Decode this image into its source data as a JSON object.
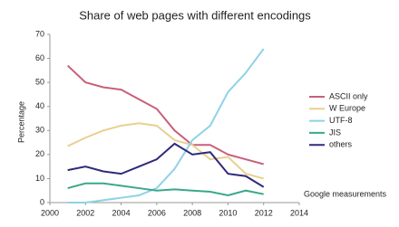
{
  "chart_data": {
    "type": "line",
    "title": "Share of web pages with different encodings",
    "y_label": "Percentage",
    "annotation": "Google measurements",
    "x": [
      2001,
      2002,
      2003,
      2004,
      2005,
      2006,
      2007,
      2008,
      2009,
      2010,
      2011,
      2012
    ],
    "xlim": [
      2000,
      2014
    ],
    "xticks": [
      2000,
      2002,
      2004,
      2006,
      2008,
      2010,
      2012,
      2014
    ],
    "ylim": [
      0,
      70
    ],
    "yticks": [
      0,
      10,
      20,
      30,
      40,
      50,
      60,
      70
    ],
    "grid": false,
    "legend": "right",
    "series": [
      {
        "name": "ASCII only",
        "color": "#c8607a",
        "values": [
          57,
          50,
          48,
          47,
          43,
          39,
          30,
          24,
          24,
          20,
          18,
          16
        ]
      },
      {
        "name": "W Europe",
        "color": "#e8d08e",
        "values": [
          23.5,
          27,
          30,
          32,
          33,
          32,
          26,
          24,
          18,
          19,
          12,
          10
        ]
      },
      {
        "name": "UTF-8",
        "color": "#8ed2e6",
        "values": [
          0,
          0,
          1,
          2,
          3,
          6,
          14,
          26,
          32,
          46,
          54,
          64
        ]
      },
      {
        "name": "JIS",
        "color": "#3aa88a",
        "values": [
          6,
          8,
          8,
          7,
          6,
          5,
          5.5,
          5,
          4.5,
          3,
          5,
          3.5
        ]
      },
      {
        "name": "others",
        "color": "#2e2a7a",
        "values": [
          13.5,
          15,
          13,
          12,
          15,
          18,
          24.5,
          20,
          21,
          12,
          11,
          6.5
        ]
      }
    ]
  }
}
